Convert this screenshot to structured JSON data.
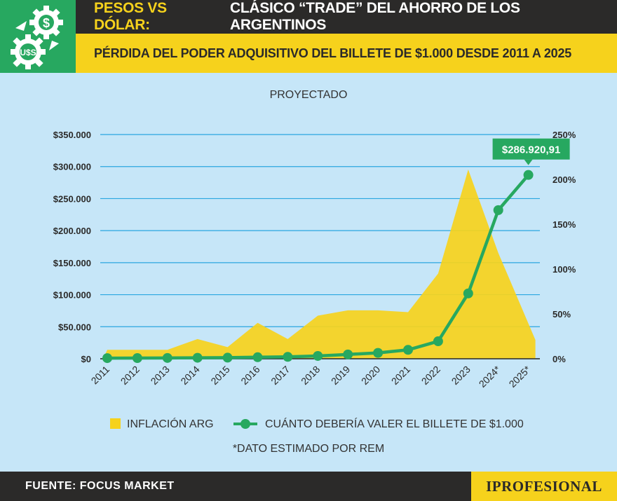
{
  "header": {
    "title_highlight": "PESOS VS DÓLAR:",
    "title_rest": "CLÁSICO “TRADE” DEL AHORRO DE LOS ARGENTINOS",
    "subtitle": "PÉRDIDA DEL PODER ADQUISITIVO DEL BILLETE DE $1.000 DESDE 2011 A 2025",
    "logo_text": "U$S"
  },
  "chart_data": {
    "type": "line",
    "title": "PROYECTADO",
    "categories": [
      "2011",
      "2012",
      "2013",
      "2014",
      "2015",
      "2016",
      "2017",
      "2018",
      "2019",
      "2020",
      "2021",
      "2022",
      "2023",
      "2024*",
      "2025*"
    ],
    "y_left": {
      "ticks": [
        "$0",
        "$50.000",
        "$100.000",
        "$150.000",
        "$200.000",
        "$250.000",
        "$300.000",
        "$350.000"
      ],
      "ylim": [
        0,
        350000
      ]
    },
    "y_right": {
      "ticks": [
        "0%",
        "50%",
        "100%",
        "150%",
        "200%",
        "250%"
      ],
      "ylim": [
        0,
        250
      ]
    },
    "series": [
      {
        "name": "INFLACIÓN ARG",
        "axis": "right",
        "style": "area",
        "color": "#f6d21c",
        "values": [
          10,
          10,
          10,
          22,
          13,
          40,
          22,
          48,
          54,
          54,
          52,
          95,
          211,
          118,
          21
        ]
      },
      {
        "name": "CUÁNTO DEBERÍA VALER EL BILLETE DE $1.000",
        "axis": "left",
        "style": "line",
        "color": "#27a860",
        "values": [
          1000,
          1100,
          1250,
          1540,
          1740,
          2430,
          2970,
          4390,
          6750,
          9150,
          13900,
          27300,
          102000,
          232000,
          286920.91
        ]
      }
    ],
    "annotation": "$286.920,91"
  },
  "note": "*DATO ESTIMADO POR REM",
  "footer": {
    "source": "FUENTE: FOCUS MARKET",
    "brand": "IPROFESIONAL"
  },
  "colors": {
    "green": "#27a860",
    "yellow": "#f6d21c",
    "dark": "#2b2a29",
    "background": "#c6e6f8",
    "grid": "#2aa6e0"
  }
}
